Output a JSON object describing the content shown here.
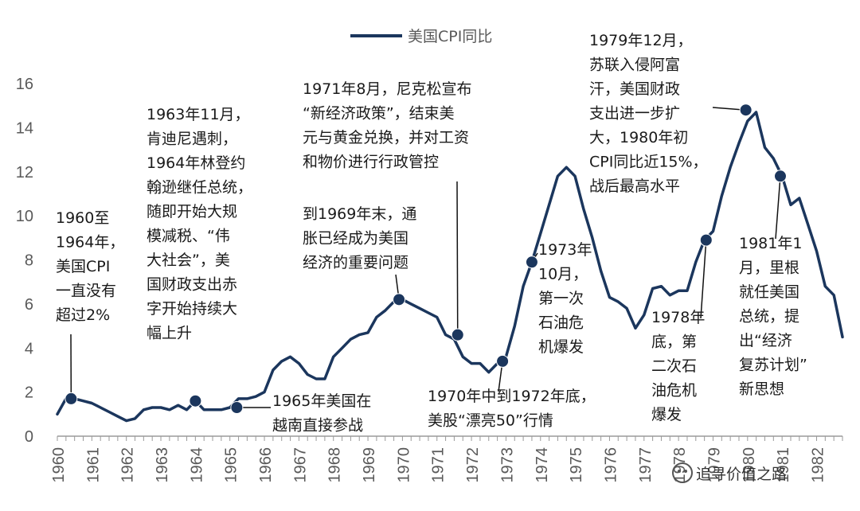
{
  "chart_data": {
    "type": "line",
    "series": [
      {
        "name": "美国CPI同比",
        "color": "#1b365d",
        "x": [
          1960.0,
          1960.25,
          1960.5,
          1960.75,
          1961.0,
          1961.25,
          1961.5,
          1961.75,
          1962.0,
          1962.25,
          1962.5,
          1962.75,
          1963.0,
          1963.25,
          1963.5,
          1963.75,
          1964.0,
          1964.25,
          1964.5,
          1964.75,
          1965.0,
          1965.25,
          1965.5,
          1965.75,
          1966.0,
          1966.25,
          1966.5,
          1966.75,
          1967.0,
          1967.25,
          1967.5,
          1967.75,
          1968.0,
          1968.25,
          1968.5,
          1968.75,
          1969.0,
          1969.25,
          1969.5,
          1969.75,
          1970.0,
          1970.25,
          1970.5,
          1970.75,
          1971.0,
          1971.25,
          1971.5,
          1971.75,
          1972.0,
          1972.25,
          1972.5,
          1972.75,
          1973.0,
          1973.25,
          1973.5,
          1973.75,
          1974.0,
          1974.25,
          1974.5,
          1974.75,
          1975.0,
          1975.25,
          1975.5,
          1975.75,
          1976.0,
          1976.25,
          1976.5,
          1976.75,
          1977.0,
          1977.25,
          1977.5,
          1977.75,
          1978.0,
          1978.25,
          1978.5,
          1978.75,
          1979.0,
          1979.25,
          1979.5,
          1979.75,
          1980.0,
          1980.25,
          1980.5,
          1980.75,
          1981.0,
          1981.25,
          1981.5,
          1981.75,
          1982.0,
          1982.25,
          1982.5,
          1982.75
        ],
        "values": [
          1.0,
          1.7,
          1.7,
          1.6,
          1.5,
          1.3,
          1.1,
          0.9,
          0.7,
          0.8,
          1.2,
          1.3,
          1.3,
          1.2,
          1.4,
          1.2,
          1.6,
          1.2,
          1.2,
          1.2,
          1.3,
          1.7,
          1.7,
          1.8,
          2.0,
          3.0,
          3.4,
          3.6,
          3.3,
          2.8,
          2.6,
          2.6,
          3.6,
          4.0,
          4.4,
          4.6,
          4.7,
          5.4,
          5.7,
          6.1,
          6.2,
          6.0,
          5.8,
          5.6,
          5.4,
          4.6,
          4.4,
          3.6,
          3.3,
          3.3,
          2.9,
          3.3,
          3.6,
          5.0,
          6.8,
          7.9,
          9.2,
          10.5,
          11.8,
          12.2,
          11.8,
          10.3,
          9.0,
          7.5,
          6.3,
          6.1,
          5.8,
          4.9,
          5.5,
          6.7,
          6.8,
          6.4,
          6.6,
          6.6,
          7.9,
          8.9,
          9.3,
          10.9,
          12.2,
          13.3,
          14.3,
          14.7,
          13.1,
          12.6,
          11.8,
          10.5,
          10.8,
          9.6,
          8.4,
          6.8,
          6.4,
          4.5
        ]
      }
    ],
    "xlim": [
      1960,
      1982.75
    ],
    "ylim": [
      0,
      16
    ],
    "yticks": [
      0,
      2,
      4,
      6,
      8,
      10,
      12,
      14,
      16
    ],
    "xticks": [
      "1960",
      "1961",
      "1962",
      "1963",
      "1964",
      "1965",
      "1966",
      "1967",
      "1968",
      "1969",
      "1970",
      "1971",
      "1972",
      "1973",
      "1974",
      "1975",
      "1976",
      "1977",
      "1978",
      "1979",
      "1980",
      "1981",
      "1982"
    ],
    "legend": "top-center",
    "grid": false,
    "annotations": [
      {
        "x": 1960.4,
        "y": 1.7,
        "lines": [
          "1960至",
          "1964年，",
          "美国CPI",
          "一直没有",
          "超过2%"
        ]
      },
      {
        "x": 1964.0,
        "y": 1.6,
        "lines": [
          "1963年11月，",
          "肯迪尼遇刺，",
          "1964年林登约",
          "翰逊继任总统，",
          "随即开始大规",
          "模减税、“伟",
          "大社会”，美",
          "国财政支出赤",
          "字开始持续大",
          "幅上升"
        ]
      },
      {
        "x": 1965.2,
        "y": 1.3,
        "lines": [
          "1965年美国在",
          "越南直接参战"
        ]
      },
      {
        "x": 1969.9,
        "y": 6.2,
        "lines": [
          "到1969年末，通",
          "胀已经成为美国",
          "经济的重要问题"
        ]
      },
      {
        "x": 1971.6,
        "y": 4.6,
        "lines": [
          "1971年8月，尼克松宣布",
          "“新经济政策”，结束美",
          "元与黄金兑换，并对工资",
          "和物价进行行政管控"
        ]
      },
      {
        "x": 1972.9,
        "y": 3.4,
        "lines": [
          "1970年中到1972年底，",
          "美股“漂亮50”行情"
        ]
      },
      {
        "x": 1973.75,
        "y": 7.9,
        "lines": [
          "1973年",
          "10月，",
          "第一次",
          "石油危",
          "机爆发"
        ]
      },
      {
        "x": 1978.8,
        "y": 8.9,
        "lines": [
          "1978年",
          "底，第",
          "二次石",
          "油危机",
          "爆发"
        ]
      },
      {
        "x": 1979.95,
        "y": 14.8,
        "lines": [
          "1979年12月，",
          "苏联入侵阿富",
          "汗，美国财政",
          "支出进一步扩",
          "大，1980年初",
          "CPI同比近15%，",
          "战后最高水平"
        ]
      },
      {
        "x": 1980.95,
        "y": 11.8,
        "lines": [
          "1981年1",
          "月，里根",
          "就任美国",
          "总统，提",
          "出“经济",
          "复苏计划”",
          "新思想"
        ]
      }
    ]
  },
  "watermark": "追寻价值之路"
}
